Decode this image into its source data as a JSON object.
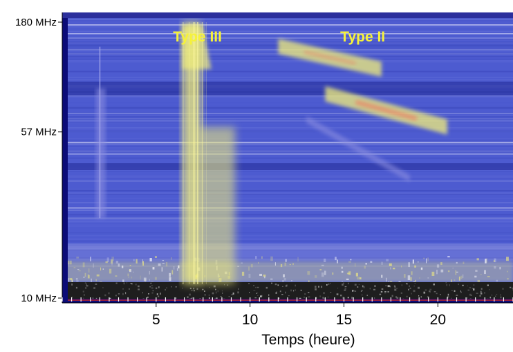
{
  "chart_data": {
    "type": "heatmap",
    "title": "",
    "xlabel": "Temps (heure)",
    "ylabel": "",
    "x_range": [
      0,
      24
    ],
    "x_ticks": [
      5,
      10,
      15,
      20
    ],
    "y_scale": "log",
    "y_range_mhz": [
      10,
      180
    ],
    "y_ticks": [
      {
        "value": 180,
        "label": "180 MHz"
      },
      {
        "value": 57,
        "label": "57 MHz"
      },
      {
        "value": 10,
        "label": "10 MHz"
      }
    ],
    "colors": {
      "background": "#4d5bd0",
      "dark_edge": "#0c0c78",
      "band_low": "#1e1e1e",
      "weak": "#8d8fe0",
      "medium": "#f2ef7a",
      "strong": "#f07860",
      "baseline": "#c62828"
    },
    "annotations": [
      {
        "text": "Type III",
        "x": 7.2,
        "freq_mhz": 145
      },
      {
        "text": "Type II",
        "x": 16.0,
        "freq_mhz": 145
      }
    ],
    "bursts": [
      {
        "name": "Type III",
        "type": "vertical",
        "time_start": 6.4,
        "time_end": 9.2,
        "freq_top_mhz": 180,
        "freq_bottom_mhz": 10,
        "peak_time": 7.7
      },
      {
        "name": "Type II",
        "type": "drifting",
        "lanes": [
          {
            "t0": 11.5,
            "f0_mhz": 140,
            "t1": 17.0,
            "f1_mhz": 110
          },
          {
            "t0": 14.0,
            "f0_mhz": 85,
            "t1": 20.5,
            "f1_mhz": 60
          },
          {
            "t0": 13.0,
            "f0_mhz": 65,
            "t1": 18.5,
            "f1_mhz": 35
          }
        ]
      },
      {
        "name": "",
        "type": "vertical",
        "time_start": 1.8,
        "time_end": 2.3,
        "freq_top_mhz": 90,
        "freq_bottom_mhz": 20,
        "peak_time": 2.0
      }
    ]
  }
}
